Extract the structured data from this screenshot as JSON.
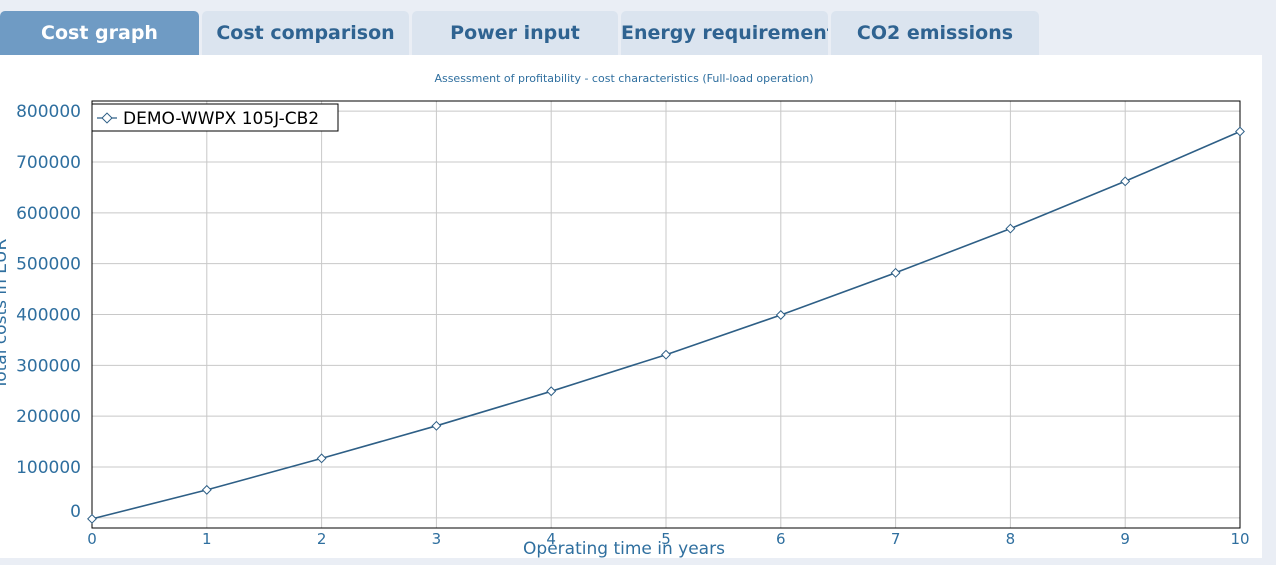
{
  "tabs": [
    {
      "label": "Cost graph",
      "active": true
    },
    {
      "label": "Cost comparison",
      "active": false
    },
    {
      "label": "Power input",
      "active": false
    },
    {
      "label": "Energy requirements",
      "active": false
    },
    {
      "label": "CO2 emissions",
      "active": false
    }
  ],
  "colors": {
    "accent": "#2e5f86",
    "axis_text": "#2f6f9f",
    "grid": "#c8c8c8",
    "active_tab": "#6f9bc4",
    "inactive_tab": "#dbe4ef"
  },
  "chart_data": {
    "type": "line",
    "title": "Assessment of profitability - cost characteristics (Full-load operation)",
    "xlabel": "Operating time in years",
    "ylabel": "Total costs in EUR",
    "xlim": [
      0,
      10
    ],
    "ylim": [
      -20000,
      820000
    ],
    "x_ticks": [
      0,
      1,
      2,
      3,
      4,
      5,
      6,
      7,
      8,
      9,
      10
    ],
    "y_ticks": [
      0,
      100000,
      200000,
      300000,
      400000,
      500000,
      600000,
      700000,
      800000
    ],
    "x_tick_labels": [
      "0",
      "1",
      "2",
      "3",
      "4",
      "5",
      "6",
      "7",
      "8",
      "9",
      "10"
    ],
    "y_tick_labels": [
      "0",
      "100000",
      "200000",
      "300000",
      "400000",
      "500000",
      "600000",
      "700000",
      "800000"
    ],
    "grid": true,
    "legend_position": "top-left",
    "series": [
      {
        "name": "DEMO-WWPX 105J-CB2",
        "marker": "diamond",
        "x": [
          0,
          1,
          2,
          3,
          4,
          5,
          6,
          7,
          8,
          9,
          10
        ],
        "y": [
          -2000,
          55000,
          117000,
          181000,
          249000,
          321000,
          399000,
          482000,
          569000,
          662000,
          760000
        ]
      }
    ]
  }
}
